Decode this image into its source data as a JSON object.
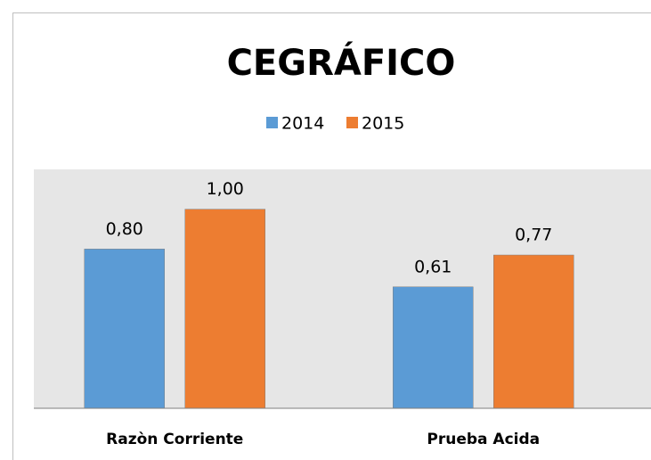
{
  "chart_data": {
    "type": "bar",
    "title": "CEGRÁFICO",
    "categories": [
      "Razòn Corriente",
      "Prueba Acida"
    ],
    "series": [
      {
        "name": "2014",
        "color": "#5b9bd5",
        "values": [
          0.8,
          0.61
        ],
        "value_labels": [
          "0,80",
          "0,61"
        ]
      },
      {
        "name": "2015",
        "color": "#ed7d31",
        "values": [
          1.0,
          0.77
        ],
        "value_labels": [
          "1,00",
          "0,77"
        ]
      }
    ],
    "ylim": [
      0,
      1.2
    ],
    "legend": "top",
    "plot_background": "#e6e6e6"
  }
}
